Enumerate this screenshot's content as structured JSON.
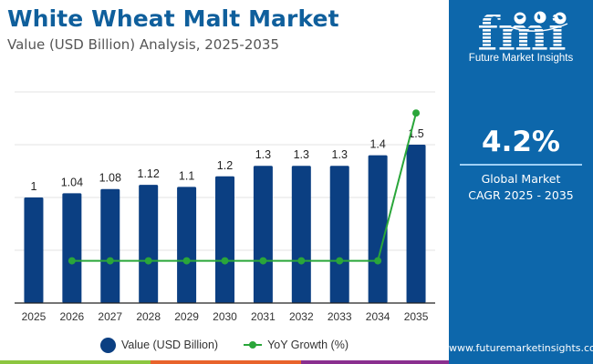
{
  "header": {
    "title": "White Wheat Malt Market",
    "subtitle": "Value (USD Billion) Analysis, 2025-2035"
  },
  "side_panel": {
    "logo_text": "fmi",
    "logo_caption": "Future Market Insights",
    "cagr_value": "4.2%",
    "cagr_label_line1": "Global Market",
    "cagr_label_line2": "CAGR 2025 - 2035",
    "website": "www.futuremarketinsights.com",
    "background_color": "#0d67ab"
  },
  "footer_stripe_colors": [
    "#8cc63f",
    "#e8632b",
    "#8a2f8f"
  ],
  "chart_data": {
    "type": "bar",
    "title": "White Wheat Malt Market",
    "subtitle": "Value (USD Billion) Analysis, 2025-2035",
    "xlabel": "",
    "ylabel": "",
    "categories": [
      "2025",
      "2026",
      "2027",
      "2028",
      "2029",
      "2030",
      "2031",
      "2032",
      "2033",
      "2034",
      "2035"
    ],
    "ylim": [
      0,
      2.0
    ],
    "grid": true,
    "gridlines": [
      0.5,
      1.0,
      1.5,
      2.0
    ],
    "legend_position": "bottom-center",
    "series": [
      {
        "name": "Value (USD Billion)",
        "type": "bar",
        "color": "#0b3f82",
        "values": [
          1,
          1.04,
          1.08,
          1.12,
          1.1,
          1.2,
          1.3,
          1.3,
          1.3,
          1.4,
          1.5
        ],
        "labels": [
          "1",
          "1.04",
          "1.08",
          "1.12",
          "1.1",
          "1.2",
          "1.3",
          "1.3",
          "1.3",
          "1.4",
          "1.5"
        ]
      },
      {
        "name": "YoY Growth (%)",
        "type": "line",
        "color": "#2aa63a",
        "axis": "secondary",
        "ylim": [
          0,
          10
        ],
        "x": [
          "2026",
          "2027",
          "2028",
          "2029",
          "2030",
          "2031",
          "2032",
          "2033",
          "2034",
          "2035"
        ],
        "values": [
          2.0,
          2.0,
          2.0,
          2.0,
          2.0,
          2.0,
          2.0,
          2.0,
          2.0,
          9.0
        ]
      }
    ]
  }
}
